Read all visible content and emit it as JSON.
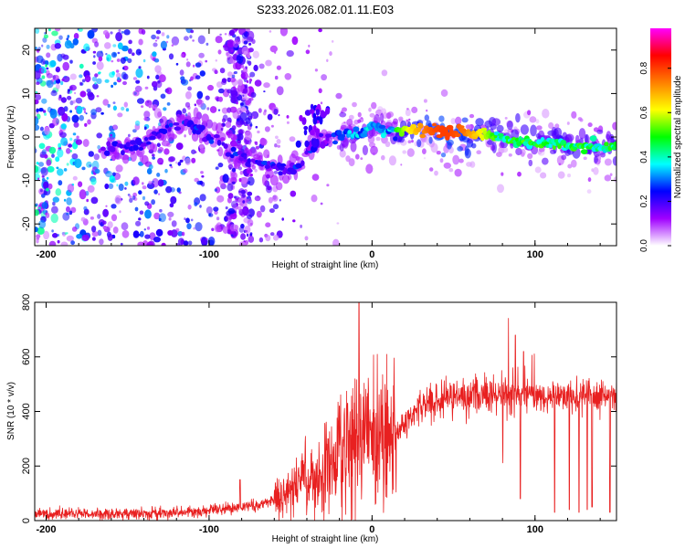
{
  "title": "S233.2026.082.01.11.E03",
  "chart_data": [
    {
      "type": "heatmap",
      "name": "spectrogram",
      "xlabel": "Height of straight line (km)",
      "ylabel": "Frequency (Hz)",
      "xlim": [
        -207,
        150
      ],
      "ylim": [
        -25,
        25
      ],
      "xticks": [
        -200,
        -100,
        0,
        100
      ],
      "yticks": [
        20,
        10,
        0,
        -10,
        -20
      ],
      "ridge": [
        {
          "x": -165,
          "y": -2.5
        },
        {
          "x": -150,
          "y": -2.5
        },
        {
          "x": -140,
          "y": -1.5
        },
        {
          "x": -130,
          "y": 1.0
        },
        {
          "x": -120,
          "y": 2.5
        },
        {
          "x": -112,
          "y": 3.0
        },
        {
          "x": -105,
          "y": 2.0
        },
        {
          "x": -98,
          "y": -1.0
        },
        {
          "x": -90,
          "y": -2.5
        },
        {
          "x": -80,
          "y": -4.5
        },
        {
          "x": -70,
          "y": -5.5
        },
        {
          "x": -60,
          "y": -7.0
        },
        {
          "x": -50,
          "y": -7.5
        },
        {
          "x": -44,
          "y": -6.0
        },
        {
          "x": -38,
          "y": -2.0
        },
        {
          "x": -33,
          "y": 0.0
        },
        {
          "x": -25,
          "y": 0.0
        },
        {
          "x": -15,
          "y": 0.5
        },
        {
          "x": -5,
          "y": 1.0
        },
        {
          "x": 0,
          "y": 2.5
        },
        {
          "x": 10,
          "y": 1.5
        },
        {
          "x": 30,
          "y": 1.5
        },
        {
          "x": 50,
          "y": 1.2
        },
        {
          "x": 70,
          "y": 0.5
        },
        {
          "x": 90,
          "y": -1.0
        },
        {
          "x": 110,
          "y": -1.5
        },
        {
          "x": 130,
          "y": -2.3
        },
        {
          "x": 150,
          "y": -2.5
        }
      ]
    },
    {
      "type": "line",
      "name": "snr",
      "xlabel": "Height of straight line (km)",
      "ylabel": "SNR (10 * v/v)",
      "xlim": [
        -207,
        150
      ],
      "ylim": [
        0,
        800
      ],
      "xticks": [
        -200,
        -100,
        0,
        100
      ],
      "yticks": [
        800,
        600,
        400,
        200,
        0
      ],
      "color": "#e82020",
      "profile": [
        {
          "x": -207,
          "y": 25
        },
        {
          "x": -150,
          "y": 25
        },
        {
          "x": -110,
          "y": 30
        },
        {
          "x": -90,
          "y": 45
        },
        {
          "x": -70,
          "y": 55
        },
        {
          "x": -60,
          "y": 75
        },
        {
          "x": -50,
          "y": 110
        },
        {
          "x": -40,
          "y": 140
        },
        {
          "x": -30,
          "y": 180
        },
        {
          "x": -20,
          "y": 240
        },
        {
          "x": -10,
          "y": 280
        },
        {
          "x": 0,
          "y": 280
        },
        {
          "x": 10,
          "y": 300
        },
        {
          "x": 20,
          "y": 360
        },
        {
          "x": 30,
          "y": 420
        },
        {
          "x": 40,
          "y": 440
        },
        {
          "x": 60,
          "y": 460
        },
        {
          "x": 80,
          "y": 465
        },
        {
          "x": 100,
          "y": 460
        },
        {
          "x": 120,
          "y": 455
        },
        {
          "x": 150,
          "y": 455
        }
      ],
      "spikes": [
        {
          "x": -8,
          "y": 800
        },
        {
          "x": -15,
          "y": 430
        },
        {
          "x": -20,
          "y": 420
        },
        {
          "x": -27,
          "y": 300
        },
        {
          "x": -81,
          "y": 150
        },
        {
          "x": 88,
          "y": 680
        },
        {
          "x": 91,
          "y": 720
        },
        {
          "x": 93,
          "y": 620
        }
      ],
      "dips": [
        {
          "x": 91,
          "y": 80
        },
        {
          "x": 112,
          "y": 30
        },
        {
          "x": 121,
          "y": 40
        },
        {
          "x": 127,
          "y": 30
        },
        {
          "x": 132,
          "y": 40
        },
        {
          "x": 135,
          "y": 50
        },
        {
          "x": 146,
          "y": 30
        }
      ]
    }
  ],
  "colorbar": {
    "label": "Normalized spectral amplitude",
    "ticks": [
      "0.0",
      "0.2",
      "0.4",
      "0.6",
      "0.8"
    ],
    "tick_values": [
      0.0,
      0.2,
      0.4,
      0.6,
      0.8
    ],
    "range": [
      0,
      0.98
    ],
    "colors": [
      "#ffffff",
      "#a000ff",
      "#0000ff",
      "#00ffff",
      "#00ff00",
      "#ffff00",
      "#ff8000",
      "#ff0000",
      "#ff00ff"
    ]
  }
}
